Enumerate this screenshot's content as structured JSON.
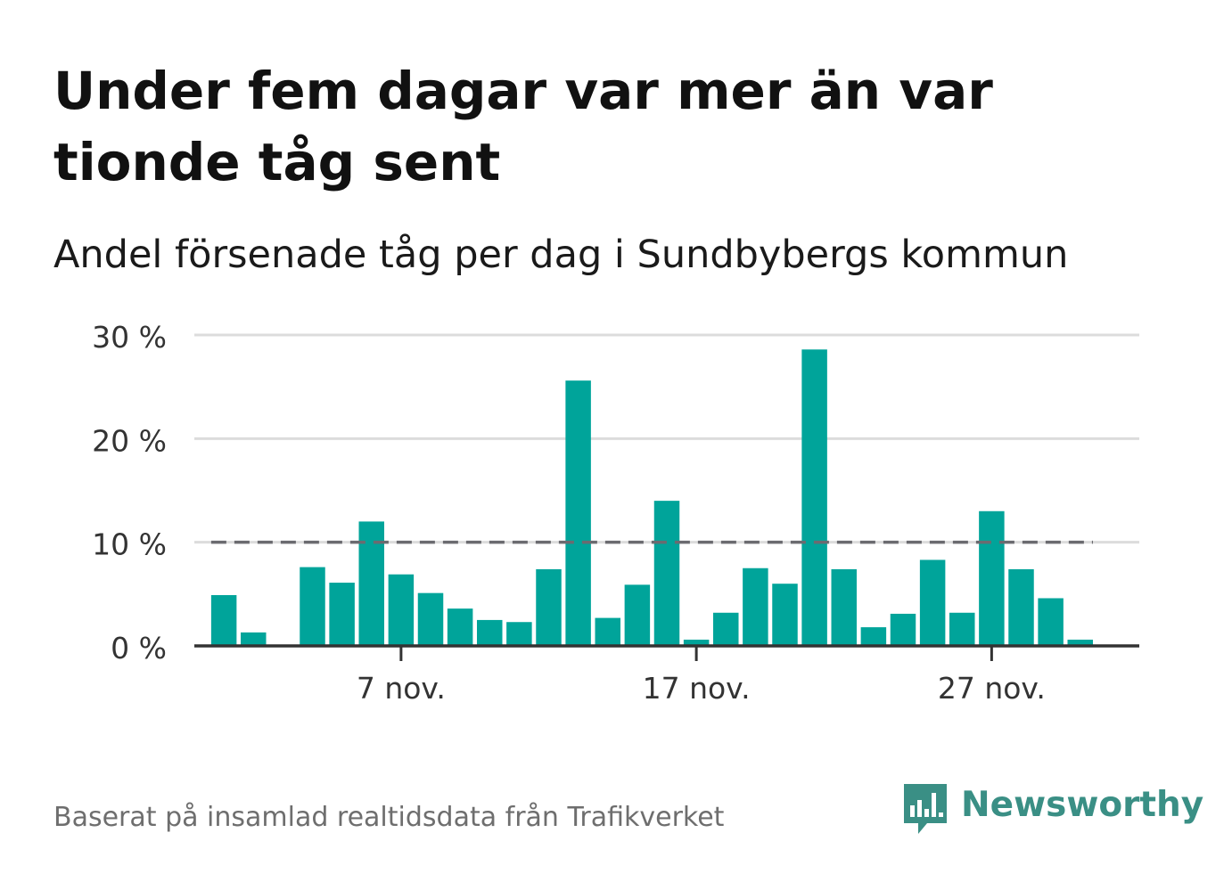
{
  "header": {
    "title": "Under fem dagar var mer än var tionde tåg sent",
    "subtitle": "Andel försenade tåg per dag i Sundbybergs kommun"
  },
  "footer": {
    "source": "Baserat på insamlad realtidsdata från Trafikverket",
    "brand": "Newsworthy"
  },
  "colors": {
    "bar": "#00a49a",
    "reference_line": "#6b6b70",
    "grid": "#dcdcdc",
    "axis": "#333333",
    "brand": "#3a8f85"
  },
  "chart_data": {
    "type": "bar",
    "title": "Andel försenade tåg per dag i Sundbybergs kommun",
    "xlabel": "",
    "ylabel": "",
    "ylim": [
      0,
      30
    ],
    "yticks": [
      0,
      10,
      20,
      30
    ],
    "ytick_labels": [
      "0 %",
      "10 %",
      "20 %",
      "30 %"
    ],
    "x_start_day": 1,
    "x_end_day": 30,
    "x_domain": [
      0,
      32
    ],
    "xtick_days": [
      7,
      17,
      27
    ],
    "xtick_labels": [
      "7 nov.",
      "17 nov.",
      "27 nov."
    ],
    "days": [
      1,
      2,
      3,
      4,
      5,
      6,
      7,
      8,
      9,
      10,
      11,
      12,
      13,
      14,
      15,
      16,
      17,
      18,
      19,
      20,
      21,
      22,
      23,
      24,
      25,
      26,
      27,
      28,
      29,
      30
    ],
    "values": [
      4.9,
      1.3,
      0,
      7.6,
      6.1,
      12.0,
      6.9,
      5.1,
      3.6,
      2.5,
      2.3,
      7.4,
      25.6,
      2.7,
      5.9,
      14.0,
      0.6,
      3.2,
      7.5,
      6.0,
      28.6,
      7.4,
      1.8,
      3.1,
      8.3,
      3.2,
      13.0,
      7.4,
      4.6,
      0.6
    ],
    "reference_line": {
      "value": 10,
      "style": "dashed"
    },
    "grid": true
  }
}
